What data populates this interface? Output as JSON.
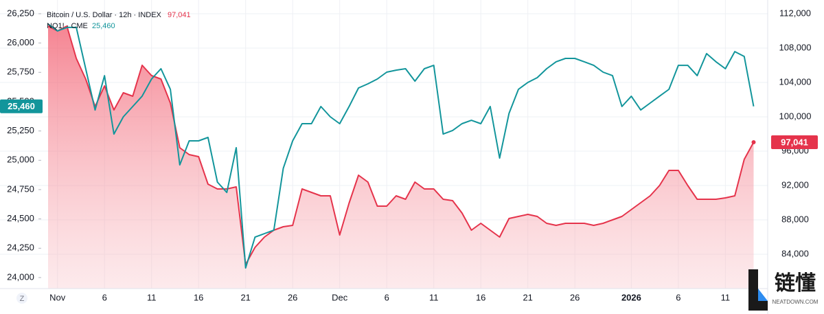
{
  "chart_data": {
    "type": "line",
    "categories": [
      null,
      "Nov",
      null,
      null,
      null,
      null,
      "6",
      null,
      null,
      null,
      null,
      "11",
      null,
      null,
      null,
      null,
      "16",
      null,
      null,
      null,
      null,
      "21",
      null,
      null,
      null,
      null,
      "26",
      null,
      null,
      null,
      null,
      "Dec",
      null,
      null,
      null,
      null,
      "6",
      null,
      null,
      null,
      null,
      "11",
      null,
      null,
      null,
      null,
      "16",
      null,
      null,
      null,
      null,
      "21",
      null,
      null,
      null,
      null,
      "26",
      null,
      null,
      null,
      null,
      null,
      "2026",
      null,
      null,
      null,
      null,
      "6",
      null,
      null,
      null,
      null,
      "11",
      null,
      null,
      null
    ],
    "series": [
      {
        "name": "Bitcoin / U.S. Dollar · 12h · INDEX",
        "color": "#e5334b",
        "axis": "y2",
        "area": true,
        "price_label": "97,041",
        "values": [
          110560,
          110000,
          110560,
          106800,
          104400,
          101200,
          103600,
          100800,
          102800,
          102400,
          106000,
          104800,
          104400,
          101600,
          96400,
          95600,
          95360,
          92160,
          91600,
          91600,
          91840,
          82800,
          84800,
          86000,
          86800,
          87200,
          87360,
          91600,
          91200,
          90800,
          90800,
          86240,
          89960,
          93200,
          92400,
          89600,
          89600,
          90800,
          90400,
          92400,
          91600,
          91600,
          90400,
          90240,
          88800,
          86800,
          87600,
          86800,
          86000,
          88160,
          88400,
          88640,
          88400,
          87600,
          87360,
          87600,
          87600,
          87600,
          87360,
          87600,
          88000,
          88400,
          89200,
          90000,
          90800,
          92000,
          93760,
          93760,
          92000,
          90400,
          90400,
          90400,
          90560,
          90800,
          95040,
          97041
        ]
      },
      {
        "name": "NQ1! · CME",
        "color": "#12959b",
        "axis": "y",
        "price_label": "25,460",
        "values": [
          26162,
          26103,
          26133,
          26133,
          25781,
          25429,
          25722,
          25224,
          25371,
          25459,
          25547,
          25693,
          25781,
          25605,
          24961,
          25166,
          25166,
          25195,
          24814,
          24726,
          25107,
          24082,
          24345,
          24375,
          24404,
          24931,
          25166,
          25312,
          25312,
          25459,
          25371,
          25312,
          25459,
          25617,
          25652,
          25693,
          25752,
          25769,
          25781,
          25675,
          25781,
          25810,
          25224,
          25254,
          25312,
          25341,
          25312,
          25459,
          25019,
          25400,
          25605,
          25664,
          25705,
          25781,
          25840,
          25869,
          25869,
          25840,
          25810,
          25752,
          25722,
          25459,
          25546,
          25429,
          25488,
          25547,
          25605,
          25810,
          25810,
          25722,
          25910,
          25840,
          25781,
          25927,
          25886,
          25460
        ]
      }
    ],
    "ylim": [
      23906,
      26367
    ],
    "yticks": [
      {
        "value": 24000,
        "label": "24,000"
      },
      {
        "value": 24250,
        "label": "24,250"
      },
      {
        "value": 24500,
        "label": "24,500"
      },
      {
        "value": 24750,
        "label": "24,750"
      },
      {
        "value": 25000,
        "label": "25,000"
      },
      {
        "value": 25250,
        "label": "25,250"
      },
      {
        "value": 25500,
        "label": "25,500"
      },
      {
        "value": 25750,
        "label": "25,750"
      },
      {
        "value": 26000,
        "label": "26,000"
      },
      {
        "value": 26250,
        "label": "26,250"
      }
    ],
    "y2lim": [
      80000,
      113600
    ],
    "y2ticks": [
      {
        "value": 84000,
        "label": "84,000"
      },
      {
        "value": 88000,
        "label": "88,000"
      },
      {
        "value": 92000,
        "label": "92,000"
      },
      {
        "value": 96000,
        "label": "96,000"
      },
      {
        "value": 100000,
        "label": "100,000"
      },
      {
        "value": 104000,
        "label": "104,000"
      },
      {
        "value": 108000,
        "label": "108,000"
      },
      {
        "value": 112000,
        "label": "112,000"
      }
    ],
    "grid": true
  },
  "controls": {
    "scale_button": "Z"
  },
  "watermark": {
    "brand": "链懂",
    "site": "NEATDOWN.COM"
  }
}
